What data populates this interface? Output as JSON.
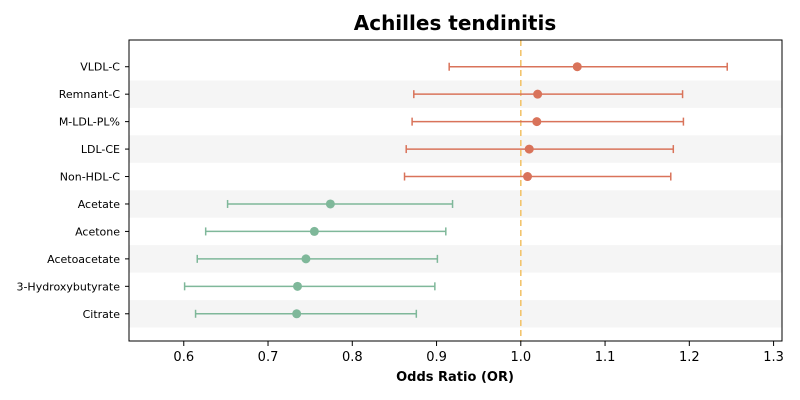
{
  "chart_data": {
    "type": "forest",
    "title": "Achilles tendinitis",
    "xlabel": "Odds Ratio (OR)",
    "xlim": [
      0.535,
      1.31
    ],
    "x_ticks": [
      0.6,
      0.7,
      0.8,
      0.9,
      1.0,
      1.1,
      1.2,
      1.3
    ],
    "x_tick_labels": [
      "0.6",
      "0.7",
      "0.8",
      "0.9",
      "1.0",
      "1.1",
      "1.2",
      "1.3"
    ],
    "reference_line": 1.0,
    "colors": {
      "risk": "#d9735a",
      "protective": "#7fb89a",
      "reference": "#f2c46d",
      "stripe": "#f5f5f5"
    },
    "rows": [
      {
        "label": "VLDL-C",
        "or": 1.067,
        "lower": 0.915,
        "upper": 1.245,
        "group": "risk"
      },
      {
        "label": "Remnant-C",
        "or": 1.02,
        "lower": 0.873,
        "upper": 1.192,
        "group": "risk"
      },
      {
        "label": "M-LDL-PL%",
        "or": 1.019,
        "lower": 0.871,
        "upper": 1.193,
        "group": "risk"
      },
      {
        "label": "LDL-CE",
        "or": 1.01,
        "lower": 0.864,
        "upper": 1.181,
        "group": "risk"
      },
      {
        "label": "Non-HDL-C",
        "or": 1.008,
        "lower": 0.862,
        "upper": 1.178,
        "group": "risk"
      },
      {
        "label": "Acetate",
        "or": 0.774,
        "lower": 0.652,
        "upper": 0.919,
        "group": "protective"
      },
      {
        "label": "Acetone",
        "or": 0.755,
        "lower": 0.626,
        "upper": 0.911,
        "group": "protective"
      },
      {
        "label": "Acetoacetate",
        "or": 0.745,
        "lower": 0.616,
        "upper": 0.901,
        "group": "protective"
      },
      {
        "label": "3-Hydroxybutyrate",
        "or": 0.735,
        "lower": 0.601,
        "upper": 0.898,
        "group": "protective"
      },
      {
        "label": "Citrate",
        "or": 0.734,
        "lower": 0.614,
        "upper": 0.876,
        "group": "protective"
      }
    ]
  }
}
